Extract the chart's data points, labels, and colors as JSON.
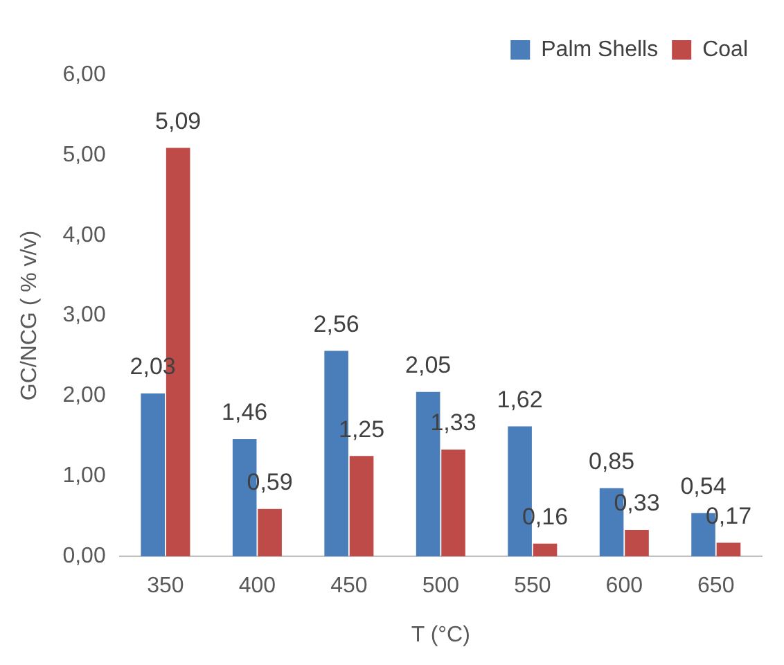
{
  "chart_data": {
    "type": "bar",
    "xlabel": "T (°C)",
    "ylabel": "GC/NCG ( % v/v)",
    "categories": [
      "350",
      "400",
      "450",
      "500",
      "550",
      "600",
      "650"
    ],
    "series": [
      {
        "name": "Palm Shells",
        "color": "#4a7ebb",
        "values": [
          2.03,
          1.46,
          2.56,
          2.05,
          1.62,
          0.85,
          0.54
        ],
        "value_labels": [
          "2,03",
          "1,46",
          "2,56",
          "2,05",
          "1,62",
          "0,85",
          "0,54"
        ]
      },
      {
        "name": "Coal",
        "color": "#be4b48",
        "values": [
          5.09,
          0.59,
          1.25,
          1.33,
          0.16,
          0.33,
          0.17
        ],
        "value_labels": [
          "5,09",
          "0,59",
          "1,25",
          "1,33",
          "0,16",
          "0,33",
          "0,17"
        ]
      }
    ],
    "ylim": [
      0,
      6
    ],
    "yticks": [
      {
        "value": 0,
        "label": "0,00"
      },
      {
        "value": 1,
        "label": "1,00"
      },
      {
        "value": 2,
        "label": "2,00"
      },
      {
        "value": 3,
        "label": "3,00"
      },
      {
        "value": 4,
        "label": "4,00"
      },
      {
        "value": 5,
        "label": "5,00"
      },
      {
        "value": 6,
        "label": "6,00"
      }
    ],
    "grid": false,
    "legend": "top right"
  }
}
